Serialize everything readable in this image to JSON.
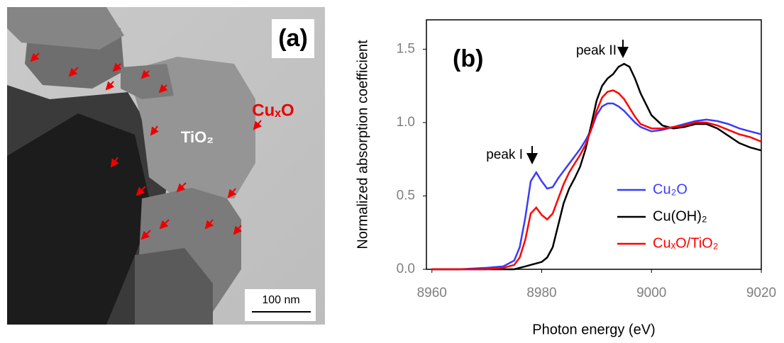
{
  "panel_a": {
    "label": "(a)",
    "particle_label": "TiO₂",
    "cluster_label": "CuₓO",
    "scale_bar": "100 nm"
  },
  "chart_data": {
    "type": "line",
    "panel_label": "(b)",
    "x_label": "Photon energy (eV)",
    "y_label": "Normalized absorption coefficient",
    "xlim": [
      8959,
      9020
    ],
    "ylim": [
      0,
      1.7
    ],
    "xticks": [
      8960,
      8980,
      9000,
      9020
    ],
    "yticks": [
      {
        "value": 0,
        "label": "0.0"
      },
      0.5,
      {
        "value": 1,
        "label": "1.0"
      },
      1.5
    ],
    "annotations": [
      "peak I",
      "peak II"
    ],
    "legend": "lower right",
    "x": [
      8960,
      8965,
      8970,
      8973,
      8975,
      8976,
      8977,
      8978,
      8979,
      8980,
      8981,
      8982,
      8983,
      8984,
      8985,
      8986,
      8987,
      8988,
      8989,
      8990,
      8991,
      8992,
      8993,
      8994,
      8995,
      8996,
      8997,
      8998,
      9000,
      9002,
      9004,
      9006,
      9008,
      9010,
      9012,
      9014,
      9016,
      9018,
      9020
    ],
    "series": [
      {
        "name": "Cu₂O",
        "color": "#3b3bff",
        "values": [
          0,
          0,
          0.01,
          0.02,
          0.06,
          0.15,
          0.35,
          0.6,
          0.66,
          0.6,
          0.55,
          0.56,
          0.62,
          0.67,
          0.72,
          0.77,
          0.82,
          0.88,
          0.95,
          1.05,
          1.11,
          1.13,
          1.13,
          1.11,
          1.08,
          1.04,
          1.0,
          0.97,
          0.94,
          0.95,
          0.97,
          0.99,
          1.01,
          1.02,
          1.01,
          0.99,
          0.96,
          0.94,
          0.92
        ]
      },
      {
        "name": "Cu(OH)₂",
        "color": "#000000",
        "values": [
          0,
          0,
          0,
          0,
          0,
          0.01,
          0.02,
          0.03,
          0.04,
          0.05,
          0.08,
          0.15,
          0.3,
          0.45,
          0.55,
          0.62,
          0.7,
          0.82,
          0.98,
          1.15,
          1.25,
          1.3,
          1.33,
          1.38,
          1.4,
          1.38,
          1.3,
          1.2,
          1.05,
          0.98,
          0.96,
          0.97,
          0.99,
          0.99,
          0.96,
          0.91,
          0.86,
          0.83,
          0.81
        ]
      },
      {
        "name": "CuₓO/TiO₂",
        "color": "#ff0000",
        "values": [
          0,
          0,
          0,
          0.01,
          0.03,
          0.08,
          0.2,
          0.38,
          0.42,
          0.37,
          0.34,
          0.38,
          0.48,
          0.58,
          0.66,
          0.72,
          0.78,
          0.85,
          0.95,
          1.08,
          1.17,
          1.21,
          1.22,
          1.2,
          1.16,
          1.1,
          1.04,
          0.99,
          0.96,
          0.96,
          0.97,
          0.98,
          1.0,
          1.0,
          0.98,
          0.95,
          0.92,
          0.9,
          0.87
        ]
      }
    ]
  }
}
